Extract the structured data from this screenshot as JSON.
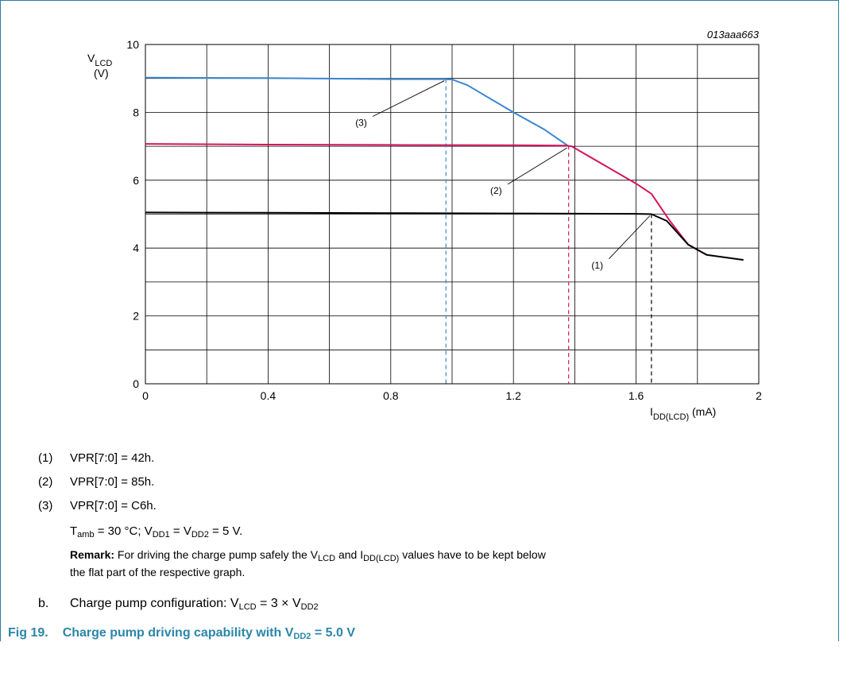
{
  "chart_data": {
    "type": "line",
    "figure_id": "013aaa663",
    "xlim": [
      0,
      2
    ],
    "ylim": [
      0,
      10
    ],
    "x_ticks": [
      "0",
      "0.4",
      "0.8",
      "1.2",
      "1.6",
      "2"
    ],
    "y_ticks": [
      "0",
      "2",
      "4",
      "6",
      "8",
      "10"
    ],
    "xlabel": {
      "main": "I",
      "sub": "DD(LCD)",
      "unit": " (mA)"
    },
    "ylabel": {
      "main": "V",
      "sub": "LCD",
      "unit": "(V)"
    },
    "grid": true,
    "series": [
      {
        "name": "(1)",
        "color": "#000000",
        "points": [
          [
            0,
            5.05
          ],
          [
            0.4,
            5.04
          ],
          [
            0.8,
            5.03
          ],
          [
            1.2,
            5.02
          ],
          [
            1.6,
            5.01
          ],
          [
            1.65,
            5.0
          ],
          [
            1.7,
            4.8
          ],
          [
            1.77,
            4.1
          ],
          [
            1.83,
            3.8
          ],
          [
            1.95,
            3.65
          ]
        ],
        "knee_x": 1.65
      },
      {
        "name": "(2)",
        "color": "#d4145a",
        "points": [
          [
            0,
            7.07
          ],
          [
            0.4,
            7.05
          ],
          [
            0.8,
            7.04
          ],
          [
            1.2,
            7.03
          ],
          [
            1.37,
            7.02
          ],
          [
            1.39,
            7.0
          ],
          [
            1.6,
            5.9
          ],
          [
            1.65,
            5.6
          ],
          [
            1.71,
            4.8
          ],
          [
            1.77,
            4.1
          ],
          [
            1.83,
            3.8
          ]
        ],
        "knee_x": 1.38
      },
      {
        "name": "(3)",
        "color": "#3a87d0",
        "points": [
          [
            0,
            9.02
          ],
          [
            0.4,
            9.01
          ],
          [
            0.8,
            8.98
          ],
          [
            0.97,
            8.98
          ],
          [
            1.0,
            8.97
          ],
          [
            1.05,
            8.8
          ],
          [
            1.2,
            8.0
          ],
          [
            1.3,
            7.5
          ],
          [
            1.38,
            7.0
          ]
        ],
        "knee_x": 0.98
      }
    ],
    "callouts": [
      {
        "label": "(1)",
        "target": [
          1.65,
          5.0
        ],
        "text_at": [
          1.47,
          3.4
        ]
      },
      {
        "label": "(2)",
        "target": [
          1.38,
          7.0
        ],
        "text_at": [
          1.14,
          5.6
        ]
      },
      {
        "label": "(3)",
        "target": [
          0.98,
          8.98
        ],
        "text_at": [
          0.7,
          7.6
        ]
      }
    ]
  },
  "notes": [
    {
      "idx": "(1)",
      "text": "VPR[7:0] = 42h."
    },
    {
      "idx": "(2)",
      "text": "VPR[7:0] = 85h."
    },
    {
      "idx": "(3)",
      "text": "VPR[7:0] = C6h."
    }
  ],
  "conditions": {
    "t": "T",
    "t_sub": "amb",
    "t_rest": " = 30 °C; V",
    "v1_sub": "DD1",
    "mid": " = V",
    "v2_sub": "DD2",
    "end": " = 5 V."
  },
  "remark": {
    "label": "Remark:",
    "part1": " For driving the charge pump safely the V",
    "sub1": "LCD",
    "part2": " and I",
    "sub2": "DD(LCD)",
    "part3": " values have to be kept below",
    "line2": "the flat part of the respective graph."
  },
  "config": {
    "idx": "b.",
    "part1": "Charge pump configuration: V",
    "sub1": "LCD",
    "part2": " = 3 × V",
    "sub2": "DD2"
  },
  "caption": {
    "num": "Fig 19.",
    "text": "Charge pump driving capability with V",
    "sub": "DD2",
    "end": " = 5.0 V"
  }
}
